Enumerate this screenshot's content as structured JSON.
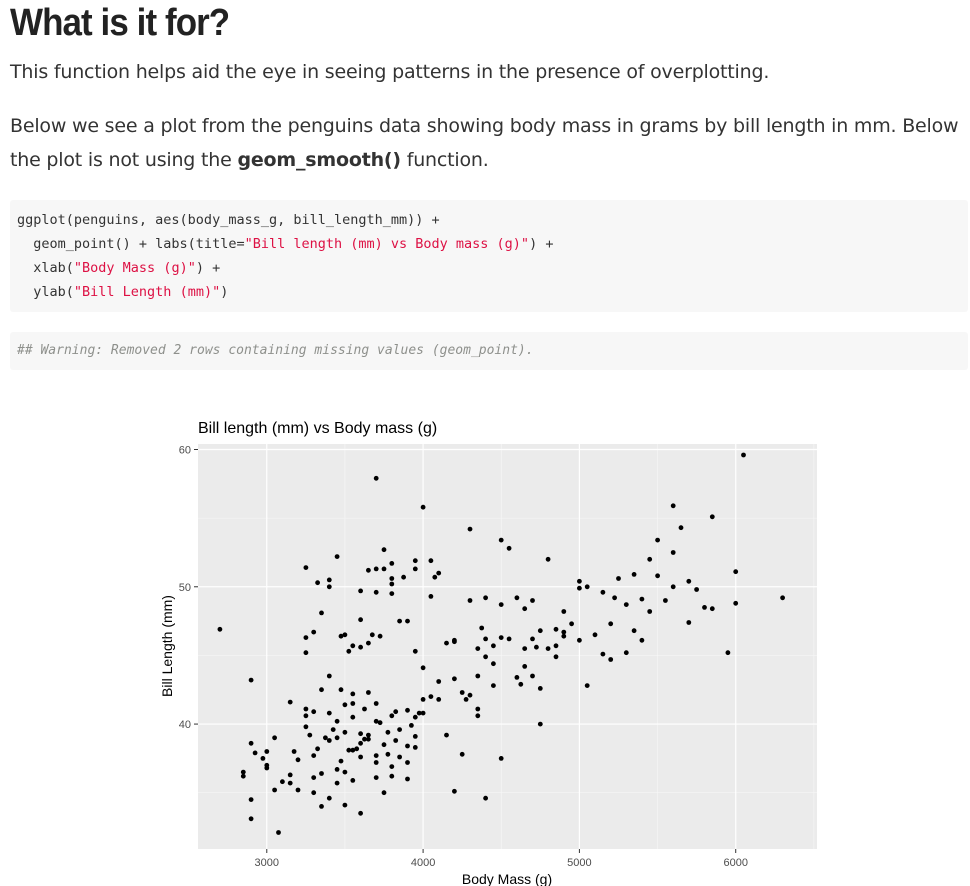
{
  "heading": "What is it for?",
  "para1": "This function helps aid the eye in seeing patterns in the presence of overplotting.",
  "para2": {
    "before": "Below we see a plot from the penguins data showing body mass in grams by bill length in mm. Below the plot is not using the ",
    "bold": "geom_smooth()",
    "after": " function."
  },
  "code": {
    "line1": "ggplot(penguins, aes(body_mass_g, bill_length_mm)) +",
    "line2_pre": "  geom_point() + labs(title=",
    "line2_str": "\"Bill length (mm) vs Body mass (g)\"",
    "line2_post": ") +",
    "line3_pre": "  xlab(",
    "line3_str": "\"Body Mass (g)\"",
    "line3_post": ") +",
    "line4_pre": "  ylab(",
    "line4_str": "\"Bill Length (mm)\"",
    "line4_post": ")"
  },
  "warning": "## Warning: Removed 2 rows containing missing values (geom_point).",
  "chart_data": {
    "type": "scatter",
    "title": "Bill length (mm) vs Body mass (g)",
    "xlabel": "Body Mass (g)",
    "ylabel": "Bill Length (mm)",
    "xlim": [
      2560,
      6520
    ],
    "ylim": [
      30.9,
      60.4
    ],
    "xticks": [
      3000,
      4000,
      5000,
      6000
    ],
    "xtick_labels": [
      "3000",
      "4000",
      "5000",
      "6000"
    ],
    "yticks": [
      40,
      50,
      60
    ],
    "ytick_labels": [
      "40",
      "50",
      "60"
    ],
    "grid": true,
    "panel_color": "#ebebeb",
    "point_color": "#000000",
    "points": [
      [
        2700,
        46.9
      ],
      [
        2850,
        36.5
      ],
      [
        2850,
        36.2
      ],
      [
        2900,
        43.2
      ],
      [
        2900,
        38.6
      ],
      [
        2900,
        34.5
      ],
      [
        2900,
        33.1
      ],
      [
        2925,
        37.9
      ],
      [
        2975,
        37.5
      ],
      [
        3000,
        37.0
      ],
      [
        3000,
        36.8
      ],
      [
        3050,
        39.0
      ],
      [
        3050,
        35.2
      ],
      [
        3075,
        32.1
      ],
      [
        3100,
        35.8
      ],
      [
        3150,
        36.3
      ],
      [
        3150,
        35.7
      ],
      [
        3175,
        38.0
      ],
      [
        3200,
        35.2
      ],
      [
        3200,
        37.4
      ],
      [
        3250,
        41.1
      ],
      [
        3250,
        40.6
      ],
      [
        3250,
        39.8
      ],
      [
        3250,
        45.2
      ],
      [
        3250,
        46.3
      ],
      [
        3250,
        51.4
      ],
      [
        3275,
        39.2
      ],
      [
        3300,
        37.7
      ],
      [
        3300,
        40.9
      ],
      [
        3300,
        36.1
      ],
      [
        3300,
        46.7
      ],
      [
        3325,
        50.3
      ],
      [
        3325,
        38.2
      ],
      [
        3350,
        36.4
      ],
      [
        3350,
        42.5
      ],
      [
        3350,
        48.1
      ],
      [
        3375,
        39.0
      ],
      [
        3400,
        40.8
      ],
      [
        3400,
        38.8
      ],
      [
        3400,
        34.6
      ],
      [
        3400,
        50.5
      ],
      [
        3400,
        50.0
      ],
      [
        3400,
        43.5
      ],
      [
        3425,
        39.6
      ],
      [
        3450,
        36.7
      ],
      [
        3450,
        40.2
      ],
      [
        3450,
        35.7
      ],
      [
        3450,
        52.2
      ],
      [
        3475,
        37.3
      ],
      [
        3475,
        46.4
      ],
      [
        3500,
        36.5
      ],
      [
        3500,
        39.4
      ],
      [
        3500,
        41.4
      ],
      [
        3500,
        46.5
      ],
      [
        3500,
        34.1
      ],
      [
        3525,
        38.1
      ],
      [
        3525,
        45.3
      ],
      [
        3550,
        45.7
      ],
      [
        3550,
        35.9
      ],
      [
        3550,
        40.5
      ],
      [
        3550,
        42.2
      ],
      [
        3550,
        41.5
      ],
      [
        3575,
        38.2
      ],
      [
        3600,
        39.3
      ],
      [
        3600,
        33.5
      ],
      [
        3600,
        49.7
      ],
      [
        3600,
        45.6
      ],
      [
        3600,
        37.6
      ],
      [
        3625,
        38.9
      ],
      [
        3625,
        41.1
      ],
      [
        3650,
        42.3
      ],
      [
        3650,
        45.9
      ],
      [
        3650,
        38.9
      ],
      [
        3650,
        51.2
      ],
      [
        3650,
        39.2
      ],
      [
        3675,
        46.5
      ],
      [
        3700,
        37.7
      ],
      [
        3700,
        51.3
      ],
      [
        3700,
        57.9
      ],
      [
        3700,
        49.6
      ],
      [
        3700,
        41.5
      ],
      [
        3700,
        37.2
      ],
      [
        3700,
        36.1
      ],
      [
        3725,
        40.1
      ],
      [
        3725,
        46.4
      ],
      [
        3750,
        38.5
      ],
      [
        3750,
        52.7
      ],
      [
        3750,
        51.3
      ],
      [
        3750,
        35.0
      ],
      [
        3775,
        37.8
      ],
      [
        3775,
        39.4
      ],
      [
        3800,
        36.9
      ],
      [
        3800,
        51.7
      ],
      [
        3800,
        49.5
      ],
      [
        3800,
        50.6
      ],
      [
        3800,
        50.2
      ],
      [
        3800,
        40.6
      ],
      [
        3800,
        36.2
      ],
      [
        3825,
        38.8
      ],
      [
        3850,
        37.6
      ],
      [
        3850,
        47.5
      ],
      [
        3850,
        39.6
      ],
      [
        3875,
        50.7
      ],
      [
        3900,
        41.0
      ],
      [
        3900,
        38.4
      ],
      [
        3900,
        47.5
      ],
      [
        3900,
        37.2
      ],
      [
        3925,
        39.9
      ],
      [
        3950,
        45.3
      ],
      [
        3950,
        51.3
      ],
      [
        3950,
        51.9
      ],
      [
        3950,
        38.3
      ],
      [
        3950,
        40.5
      ],
      [
        3975,
        40.8
      ],
      [
        4000,
        55.8
      ],
      [
        4000,
        40.8
      ],
      [
        4000,
        41.8
      ],
      [
        4000,
        44.1
      ],
      [
        4050,
        49.3
      ],
      [
        4050,
        42.0
      ],
      [
        4050,
        51.9
      ],
      [
        4075,
        50.7
      ],
      [
        4100,
        51.0
      ],
      [
        4100,
        43.1
      ],
      [
        4100,
        41.8
      ],
      [
        4150,
        39.2
      ],
      [
        4150,
        45.9
      ],
      [
        4200,
        46.0
      ],
      [
        4200,
        43.3
      ],
      [
        4200,
        35.1
      ],
      [
        4200,
        46.1
      ],
      [
        4250,
        42.3
      ],
      [
        4250,
        37.8
      ],
      [
        4300,
        54.2
      ],
      [
        4300,
        42.1
      ],
      [
        4300,
        49.0
      ],
      [
        4350,
        40.6
      ],
      [
        4350,
        43.5
      ],
      [
        4350,
        41.1
      ],
      [
        4400,
        34.6
      ],
      [
        4400,
        44.9
      ],
      [
        4400,
        46.2
      ],
      [
        4400,
        49.2
      ],
      [
        4450,
        42.8
      ],
      [
        4450,
        44.4
      ],
      [
        4500,
        48.7
      ],
      [
        4500,
        53.4
      ],
      [
        4500,
        37.5
      ],
      [
        4500,
        46.3
      ],
      [
        4550,
        52.8
      ],
      [
        4600,
        49.2
      ],
      [
        4600,
        43.4
      ],
      [
        4650,
        45.5
      ],
      [
        4650,
        48.4
      ],
      [
        4700,
        43.5
      ],
      [
        4700,
        46.2
      ],
      [
        4700,
        49.0
      ],
      [
        4750,
        40.0
      ],
      [
        4750,
        46.8
      ],
      [
        4800,
        45.5
      ],
      [
        4800,
        52.0
      ],
      [
        4850,
        45.7
      ],
      [
        4850,
        44.9
      ],
      [
        4900,
        46.7
      ],
      [
        4900,
        48.2
      ],
      [
        4950,
        47.3
      ],
      [
        5000,
        49.9
      ],
      [
        5000,
        50.4
      ],
      [
        5000,
        46.1
      ],
      [
        5050,
        42.8
      ],
      [
        5100,
        46.5
      ],
      [
        5150,
        49.6
      ],
      [
        5200,
        44.7
      ],
      [
        5200,
        47.3
      ],
      [
        5250,
        50.6
      ],
      [
        5300,
        45.2
      ],
      [
        5300,
        48.7
      ],
      [
        5350,
        50.9
      ],
      [
        5400,
        49.1
      ],
      [
        5450,
        48.2
      ],
      [
        5500,
        50.8
      ],
      [
        5500,
        53.4
      ],
      [
        5550,
        49.0
      ],
      [
        5600,
        55.9
      ],
      [
        5600,
        50.0
      ],
      [
        5650,
        54.3
      ],
      [
        5700,
        50.4
      ],
      [
        5750,
        49.8
      ],
      [
        5800,
        48.5
      ],
      [
        5850,
        55.1
      ],
      [
        5850,
        48.4
      ],
      [
        5950,
        45.2
      ],
      [
        6000,
        51.1
      ],
      [
        6000,
        48.8
      ],
      [
        6050,
        59.6
      ],
      [
        6300,
        49.2
      ],
      [
        4650,
        44.2
      ],
      [
        4725,
        45.6
      ],
      [
        4550,
        46.2
      ],
      [
        4850,
        46.9
      ],
      [
        5150,
        45.1
      ],
      [
        4750,
        42.6
      ],
      [
        5400,
        46.1
      ],
      [
        5700,
        47.4
      ],
      [
        3475,
        42.5
      ],
      [
        3600,
        38.6
      ],
      [
        3300,
        35.0
      ],
      [
        3700,
        40.2
      ],
      [
        3900,
        36.0
      ],
      [
        3450,
        39.0
      ],
      [
        3150,
        41.6
      ],
      [
        3825,
        40.9
      ],
      [
        4275,
        41.8
      ],
      [
        4375,
        47.0
      ],
      [
        4900,
        46.4
      ],
      [
        5225,
        49.2
      ],
      [
        5450,
        52.0
      ],
      [
        4625,
        42.9
      ],
      [
        4350,
        45.5
      ],
      [
        3600,
        47.6
      ],
      [
        3000,
        38.0
      ],
      [
        3550,
        38.1
      ],
      [
        3350,
        34.0
      ],
      [
        3950,
        39.1
      ],
      [
        4450,
        45.7
      ],
      [
        5350,
        46.8
      ],
      [
        5050,
        50.0
      ],
      [
        5600,
        52.5
      ]
    ]
  }
}
